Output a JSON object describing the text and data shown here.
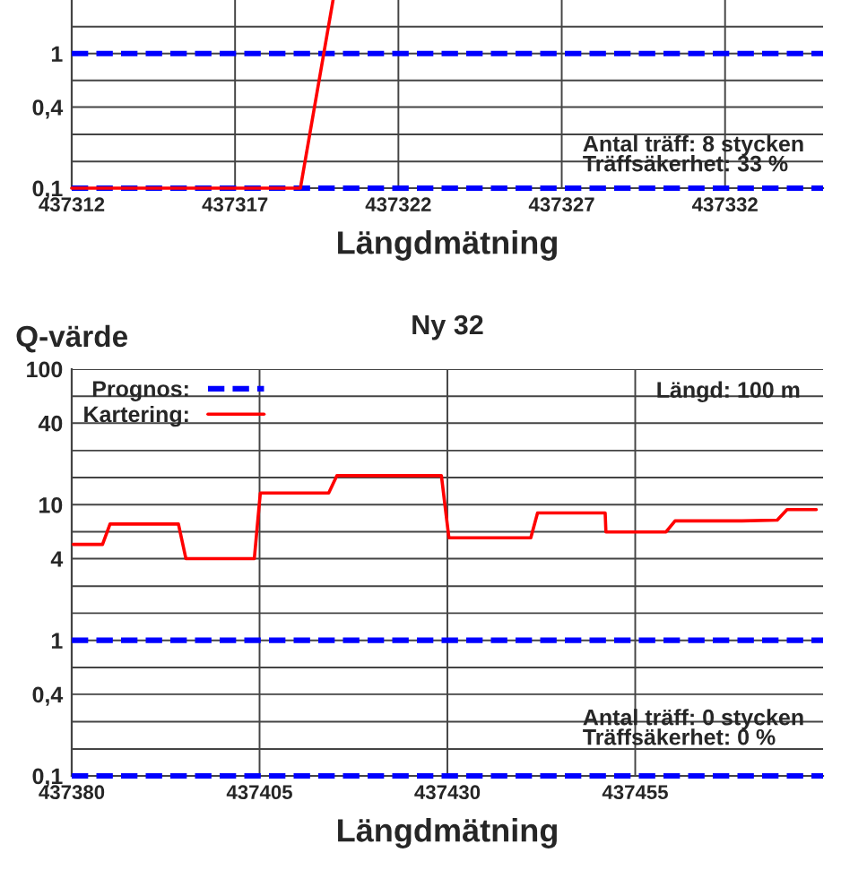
{
  "chart_data": [
    {
      "type": "line",
      "xlabel": "Längdmätning",
      "log": true,
      "grid": true,
      "legend": false,
      "xlim": [
        437312,
        437335
      ],
      "xticks": [
        437312,
        437317,
        437322,
        437327,
        437332
      ],
      "ylim": [
        0.1,
        2.5
      ],
      "yticks": [
        {
          "value": 0.1,
          "label": "0,1"
        },
        {
          "value": 0.158,
          "label": null
        },
        {
          "value": 0.251,
          "label": null
        },
        {
          "value": 0.4,
          "label": "0,4"
        },
        {
          "value": 0.631,
          "label": null
        },
        {
          "value": 1,
          "label": "1"
        },
        {
          "value": 1.585,
          "label": null
        }
      ],
      "series": [
        {
          "color": "#0000ff",
          "line_style": "dashed",
          "x": [
            437312,
            437335
          ],
          "values": [
            1,
            1
          ]
        },
        {
          "color": "#0000ff",
          "line_style": "dashed",
          "x": [
            437312,
            437335
          ],
          "values": [
            0.1,
            0.1
          ]
        },
        {
          "color": "#ff0000",
          "line_style": "solid",
          "x": [
            437312,
            437319,
            437320
          ],
          "values": [
            0.1,
            0.1,
            2.5
          ]
        }
      ],
      "annotations": [
        "Antal träff: 8 stycken",
        "Träffsäkerhet: 33 %"
      ]
    },
    {
      "type": "line",
      "title": "Ny 32",
      "ylabel": "Q-värde",
      "xlabel": "Längdmätning",
      "log": true,
      "grid": true,
      "legend": "top left",
      "xlim": [
        437380,
        437480
      ],
      "xticks": [
        437380,
        437405,
        437430,
        437455
      ],
      "ylim": [
        0.1,
        100
      ],
      "yticks": [
        {
          "value": 0.1,
          "label": "0,1"
        },
        {
          "value": 0.158,
          "label": null
        },
        {
          "value": 0.251,
          "label": null
        },
        {
          "value": 0.4,
          "label": "0,4"
        },
        {
          "value": 0.631,
          "label": null
        },
        {
          "value": 1,
          "label": "1"
        },
        {
          "value": 1.585,
          "label": null
        },
        {
          "value": 2.51,
          "label": null
        },
        {
          "value": 4,
          "label": "4"
        },
        {
          "value": 6.31,
          "label": null
        },
        {
          "value": 10,
          "label": "10"
        },
        {
          "value": 15.85,
          "label": null
        },
        {
          "value": 25.1,
          "label": null
        },
        {
          "value": 40,
          "label": "40"
        },
        {
          "value": 63.1,
          "label": null
        },
        {
          "value": 100,
          "label": "100"
        }
      ],
      "series": [
        {
          "name": "Prognos:",
          "color": "#0000ff",
          "line_style": "dashed",
          "x": [
            437380,
            437480
          ],
          "values": [
            1,
            1
          ]
        },
        {
          "color": "#0000ff",
          "line_style": "dashed",
          "x": [
            437380,
            437480
          ],
          "values": [
            0.1,
            0.1
          ]
        },
        {
          "name": "Kartering:",
          "color": "#ff0000",
          "line_style": "solid",
          "x": [
            437380.2,
            437384.1,
            437385.1,
            437394.2,
            437395.2,
            437404.3,
            437405.1,
            437414.2,
            437415.3,
            437429.2,
            437430.2,
            437441.1,
            437442.0,
            437451.0,
            437451.1,
            437459.1,
            437460.3,
            437469.2,
            437473.9,
            437475.2,
            437479.1
          ],
          "values": [
            5.1,
            5.1,
            7.2,
            7.2,
            4.0,
            4.0,
            12.2,
            12.2,
            16.4,
            16.4,
            5.7,
            5.7,
            8.7,
            8.7,
            6.3,
            6.3,
            7.6,
            7.6,
            7.7,
            9.2,
            9.2
          ]
        }
      ],
      "annotations": [
        "Längd: 100 m",
        "Antal träff: 0 stycken",
        "Träffsäkerhet: 0 %"
      ]
    }
  ]
}
